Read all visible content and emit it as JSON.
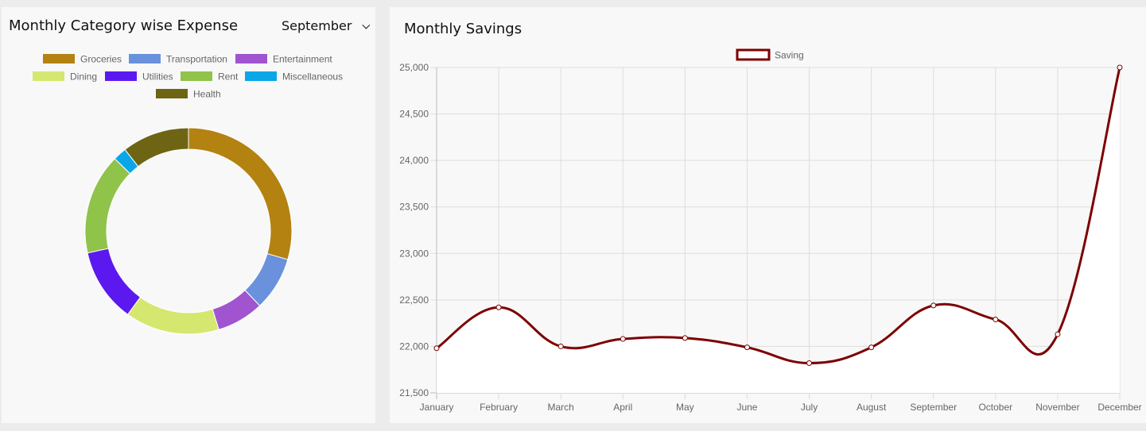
{
  "expense_panel": {
    "title": "Monthly Category wise Expense",
    "month_selected": "September"
  },
  "savings_panel": {
    "title": "Monthly Savings"
  },
  "chart_data": [
    {
      "type": "pie",
      "variant": "doughnut",
      "legend_placement": "top",
      "categories": [
        "Groceries",
        "Transportation",
        "Entertainment",
        "Dining",
        "Utilities",
        "Rent",
        "Miscellaneous",
        "Health"
      ],
      "values": [
        28,
        8,
        7,
        14,
        11,
        15,
        2,
        10
      ],
      "colors": [
        "#b38211",
        "#6991dc",
        "#a054cf",
        "#d5e76e",
        "#5c19ef",
        "#8fc34a",
        "#09a7e8",
        "#6e6514"
      ]
    },
    {
      "type": "line",
      "legend_placement": "top",
      "grid": true,
      "x": [
        "January",
        "February",
        "March",
        "April",
        "May",
        "June",
        "July",
        "August",
        "September",
        "October",
        "November",
        "December"
      ],
      "series": [
        {
          "name": "Saving",
          "color": "#7d0000",
          "values": [
            21980,
            22420,
            22000,
            22080,
            22090,
            21990,
            21820,
            21990,
            22440,
            22290,
            22130,
            25000
          ]
        }
      ],
      "ylim": [
        21500,
        25000
      ],
      "yticks": [
        21500,
        22000,
        22500,
        23000,
        23500,
        24000,
        24500,
        25000
      ],
      "ytick_labels": [
        "21,500",
        "22,000",
        "22,500",
        "23,000",
        "23,500",
        "24,000",
        "24,500",
        "25,000"
      ]
    }
  ]
}
